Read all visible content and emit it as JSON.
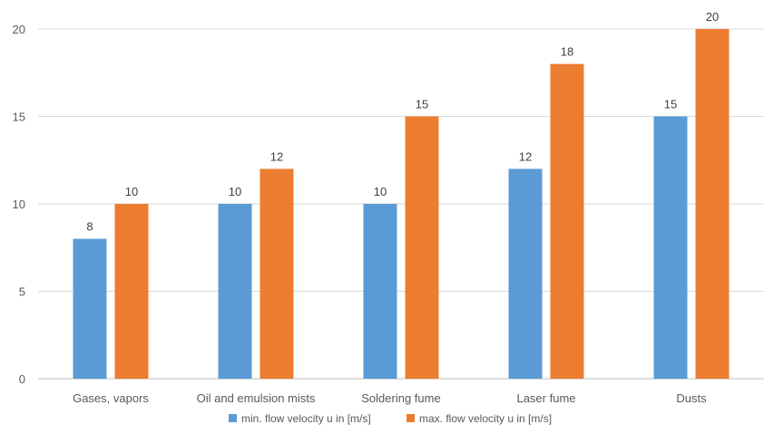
{
  "chart_data": {
    "type": "bar",
    "title": "",
    "xlabel": "",
    "ylabel": "",
    "categories": [
      "Gases, vapors",
      "Oil and emulsion mists",
      "Soldering fume",
      "Laser fume",
      "Dusts"
    ],
    "series": [
      {
        "name": "min. flow velocity u in [m/s]",
        "color": "#5b9bd5",
        "values": [
          8,
          10,
          10,
          12,
          15
        ]
      },
      {
        "name": "max. flow velocity u in [m/s]",
        "color": "#ed7d31",
        "values": [
          10,
          12,
          15,
          18,
          20
        ]
      }
    ],
    "ylim": [
      0,
      20
    ],
    "yticks": [
      0,
      5,
      10,
      15,
      20
    ],
    "grid": true,
    "data_labels": true,
    "legend_position": "bottom"
  }
}
